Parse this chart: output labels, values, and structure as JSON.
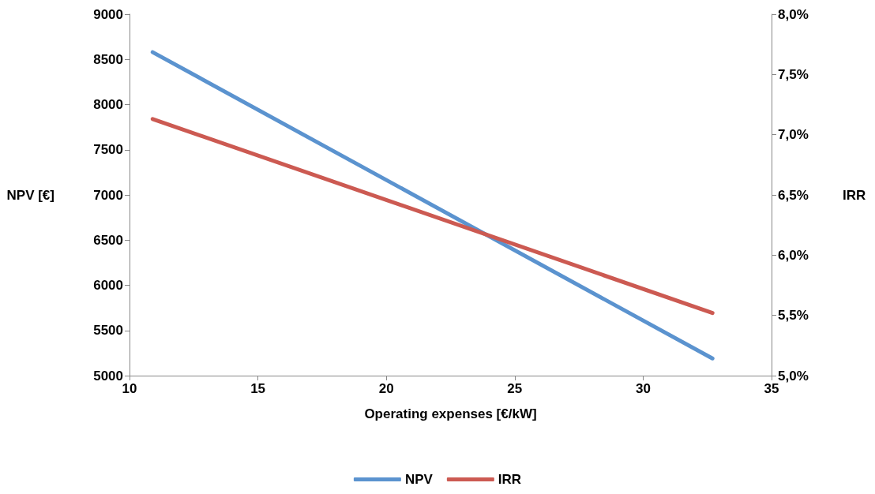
{
  "chart_data": {
    "type": "line",
    "xlabel": "Operating expenses [€/kW]",
    "ylabel": "NPV [€]",
    "y2label": "IRR",
    "x": [
      10.9,
      32.7
    ],
    "series": [
      {
        "name": "NPV",
        "color": "#5b93cf",
        "values": [
          8580,
          5190
        ]
      },
      {
        "name": "IRR",
        "color": "#cc5a52",
        "values": [
          7.13,
          5.52
        ],
        "axis": "y2"
      }
    ],
    "xlim": [
      10,
      35
    ],
    "xticks": [
      10,
      15,
      20,
      25,
      30,
      35
    ],
    "ylim": [
      5000,
      9000
    ],
    "yticks": [
      5000,
      5500,
      6000,
      6500,
      7000,
      7500,
      8000,
      8500,
      9000
    ],
    "y2lim": [
      5.0,
      8.0
    ],
    "y2ticks": [
      {
        "value": 5.0,
        "label": "5,0%"
      },
      {
        "value": 5.5,
        "label": "5,5%"
      },
      {
        "value": 6.0,
        "label": "6,0%"
      },
      {
        "value": 6.5,
        "label": "6,5%"
      },
      {
        "value": 7.0,
        "label": "7,0%"
      },
      {
        "value": 7.5,
        "label": "7,5%"
      },
      {
        "value": 8.0,
        "label": "8,0%"
      }
    ],
    "grid": false,
    "legend": "bottom",
    "marker": "none",
    "line_style": "solid"
  }
}
